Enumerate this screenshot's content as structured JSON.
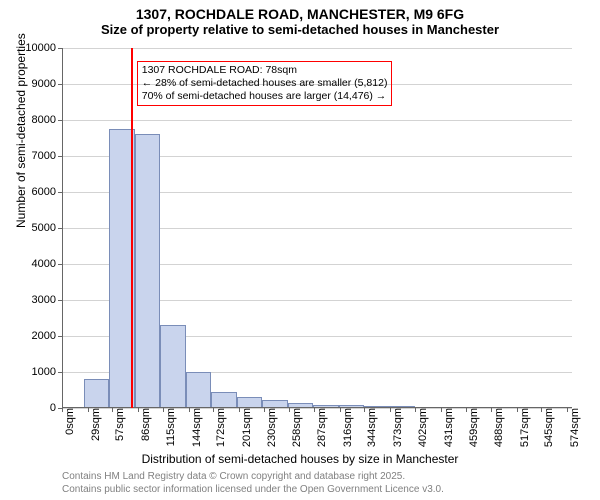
{
  "title_main": "1307, ROCHDALE ROAD, MANCHESTER, M9 6FG",
  "title_sub": "Size of property relative to semi-detached houses in Manchester",
  "ylabel": "Number of semi-detached properties",
  "xlabel": "Distribution of semi-detached houses by size in Manchester",
  "credits_line1": "Contains HM Land Registry data © Crown copyright and database right 2025.",
  "credits_line2": "Contains public sector information licensed under the Open Government Licence v3.0.",
  "chart": {
    "type": "histogram",
    "ylim": [
      0,
      10000
    ],
    "ytick_step": 1000,
    "ytick_count": 11,
    "xticks": [
      0,
      29,
      57,
      86,
      115,
      144,
      172,
      201,
      230,
      258,
      287,
      316,
      344,
      373,
      402,
      431,
      459,
      488,
      517,
      545,
      574
    ],
    "xtick_suffix": "sqm",
    "xmax": 580,
    "bar_fill": "#c9d4ed",
    "bar_border": "#7a8db8",
    "grid_color": "#808080",
    "background": "#ffffff",
    "bars": [
      {
        "x0": 25,
        "x1": 54,
        "y": 800
      },
      {
        "x0": 54,
        "x1": 83,
        "y": 7750
      },
      {
        "x0": 83,
        "x1": 112,
        "y": 7600
      },
      {
        "x0": 112,
        "x1": 141,
        "y": 2300
      },
      {
        "x0": 141,
        "x1": 170,
        "y": 1000
      },
      {
        "x0": 170,
        "x1": 199,
        "y": 450
      },
      {
        "x0": 199,
        "x1": 228,
        "y": 300
      },
      {
        "x0": 228,
        "x1": 257,
        "y": 220
      },
      {
        "x0": 257,
        "x1": 286,
        "y": 150
      },
      {
        "x0": 286,
        "x1": 315,
        "y": 90
      },
      {
        "x0": 315,
        "x1": 344,
        "y": 80
      },
      {
        "x0": 344,
        "x1": 373,
        "y": 60
      },
      {
        "x0": 373,
        "x1": 402,
        "y": 50
      }
    ],
    "marker": {
      "x": 78,
      "color": "#ff0000"
    },
    "annotation": {
      "border_color": "#ff0000",
      "lines": [
        "1307 ROCHDALE ROAD: 78sqm",
        "← 28% of semi-detached houses are smaller (5,812)",
        "70% of semi-detached houses are larger (14,476) →"
      ],
      "x_left": 85,
      "y_top_value": 9650
    }
  }
}
